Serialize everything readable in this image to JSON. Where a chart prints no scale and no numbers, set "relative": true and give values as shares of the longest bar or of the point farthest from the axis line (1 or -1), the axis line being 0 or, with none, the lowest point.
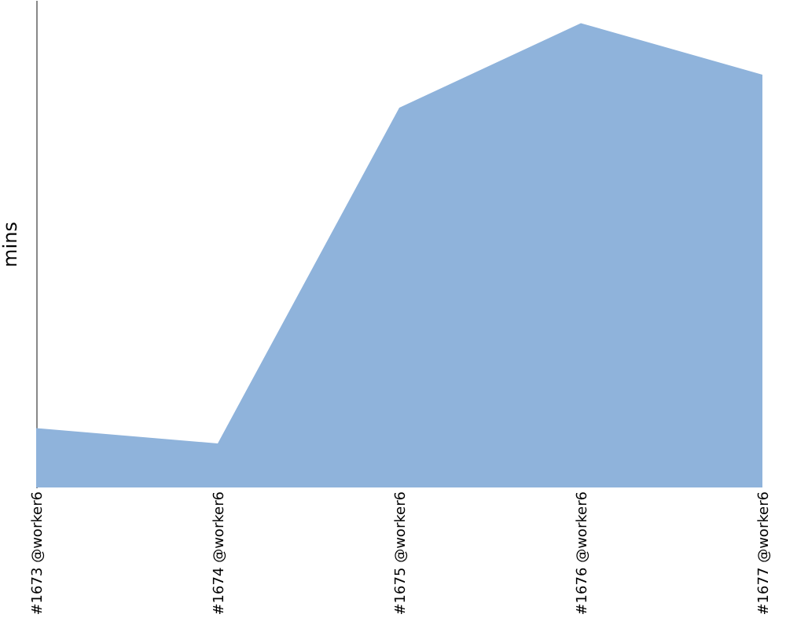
{
  "chart_data": {
    "type": "area",
    "ylabel": "mins",
    "relative": true,
    "categories": [
      "#1673 @worker6",
      "#1674 @worker6",
      "#1675 @worker6",
      "#1676 @worker6",
      "#1677 @worker6"
    ],
    "series": [
      {
        "color": "#8fb3db",
        "values": [
          0.128,
          0.095,
          0.818,
          1,
          0.889
        ]
      }
    ]
  }
}
